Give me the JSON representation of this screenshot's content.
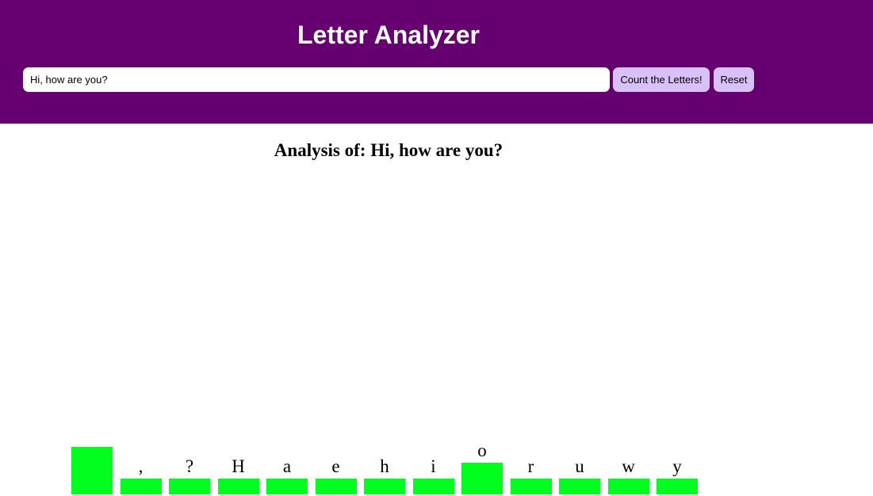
{
  "header": {
    "title": "Letter Analyzer",
    "input_value": "Hi, how are you?",
    "count_button_label": "Count the Letters!",
    "reset_button_label": "Reset",
    "background_color": "#660070",
    "button_color": "#d8c0f8"
  },
  "analysis": {
    "prefix": "Analysis of: ",
    "subject": "Hi, how are you?"
  },
  "chart_data": {
    "type": "bar",
    "categories": [
      " ",
      ",",
      "?",
      "H",
      "a",
      "e",
      "h",
      "i",
      "o",
      "r",
      "u",
      "w",
      "y"
    ],
    "values": [
      3,
      1,
      1,
      1,
      1,
      1,
      1,
      1,
      2,
      1,
      1,
      1,
      1
    ],
    "bar_color": "#00ff1e"
  }
}
